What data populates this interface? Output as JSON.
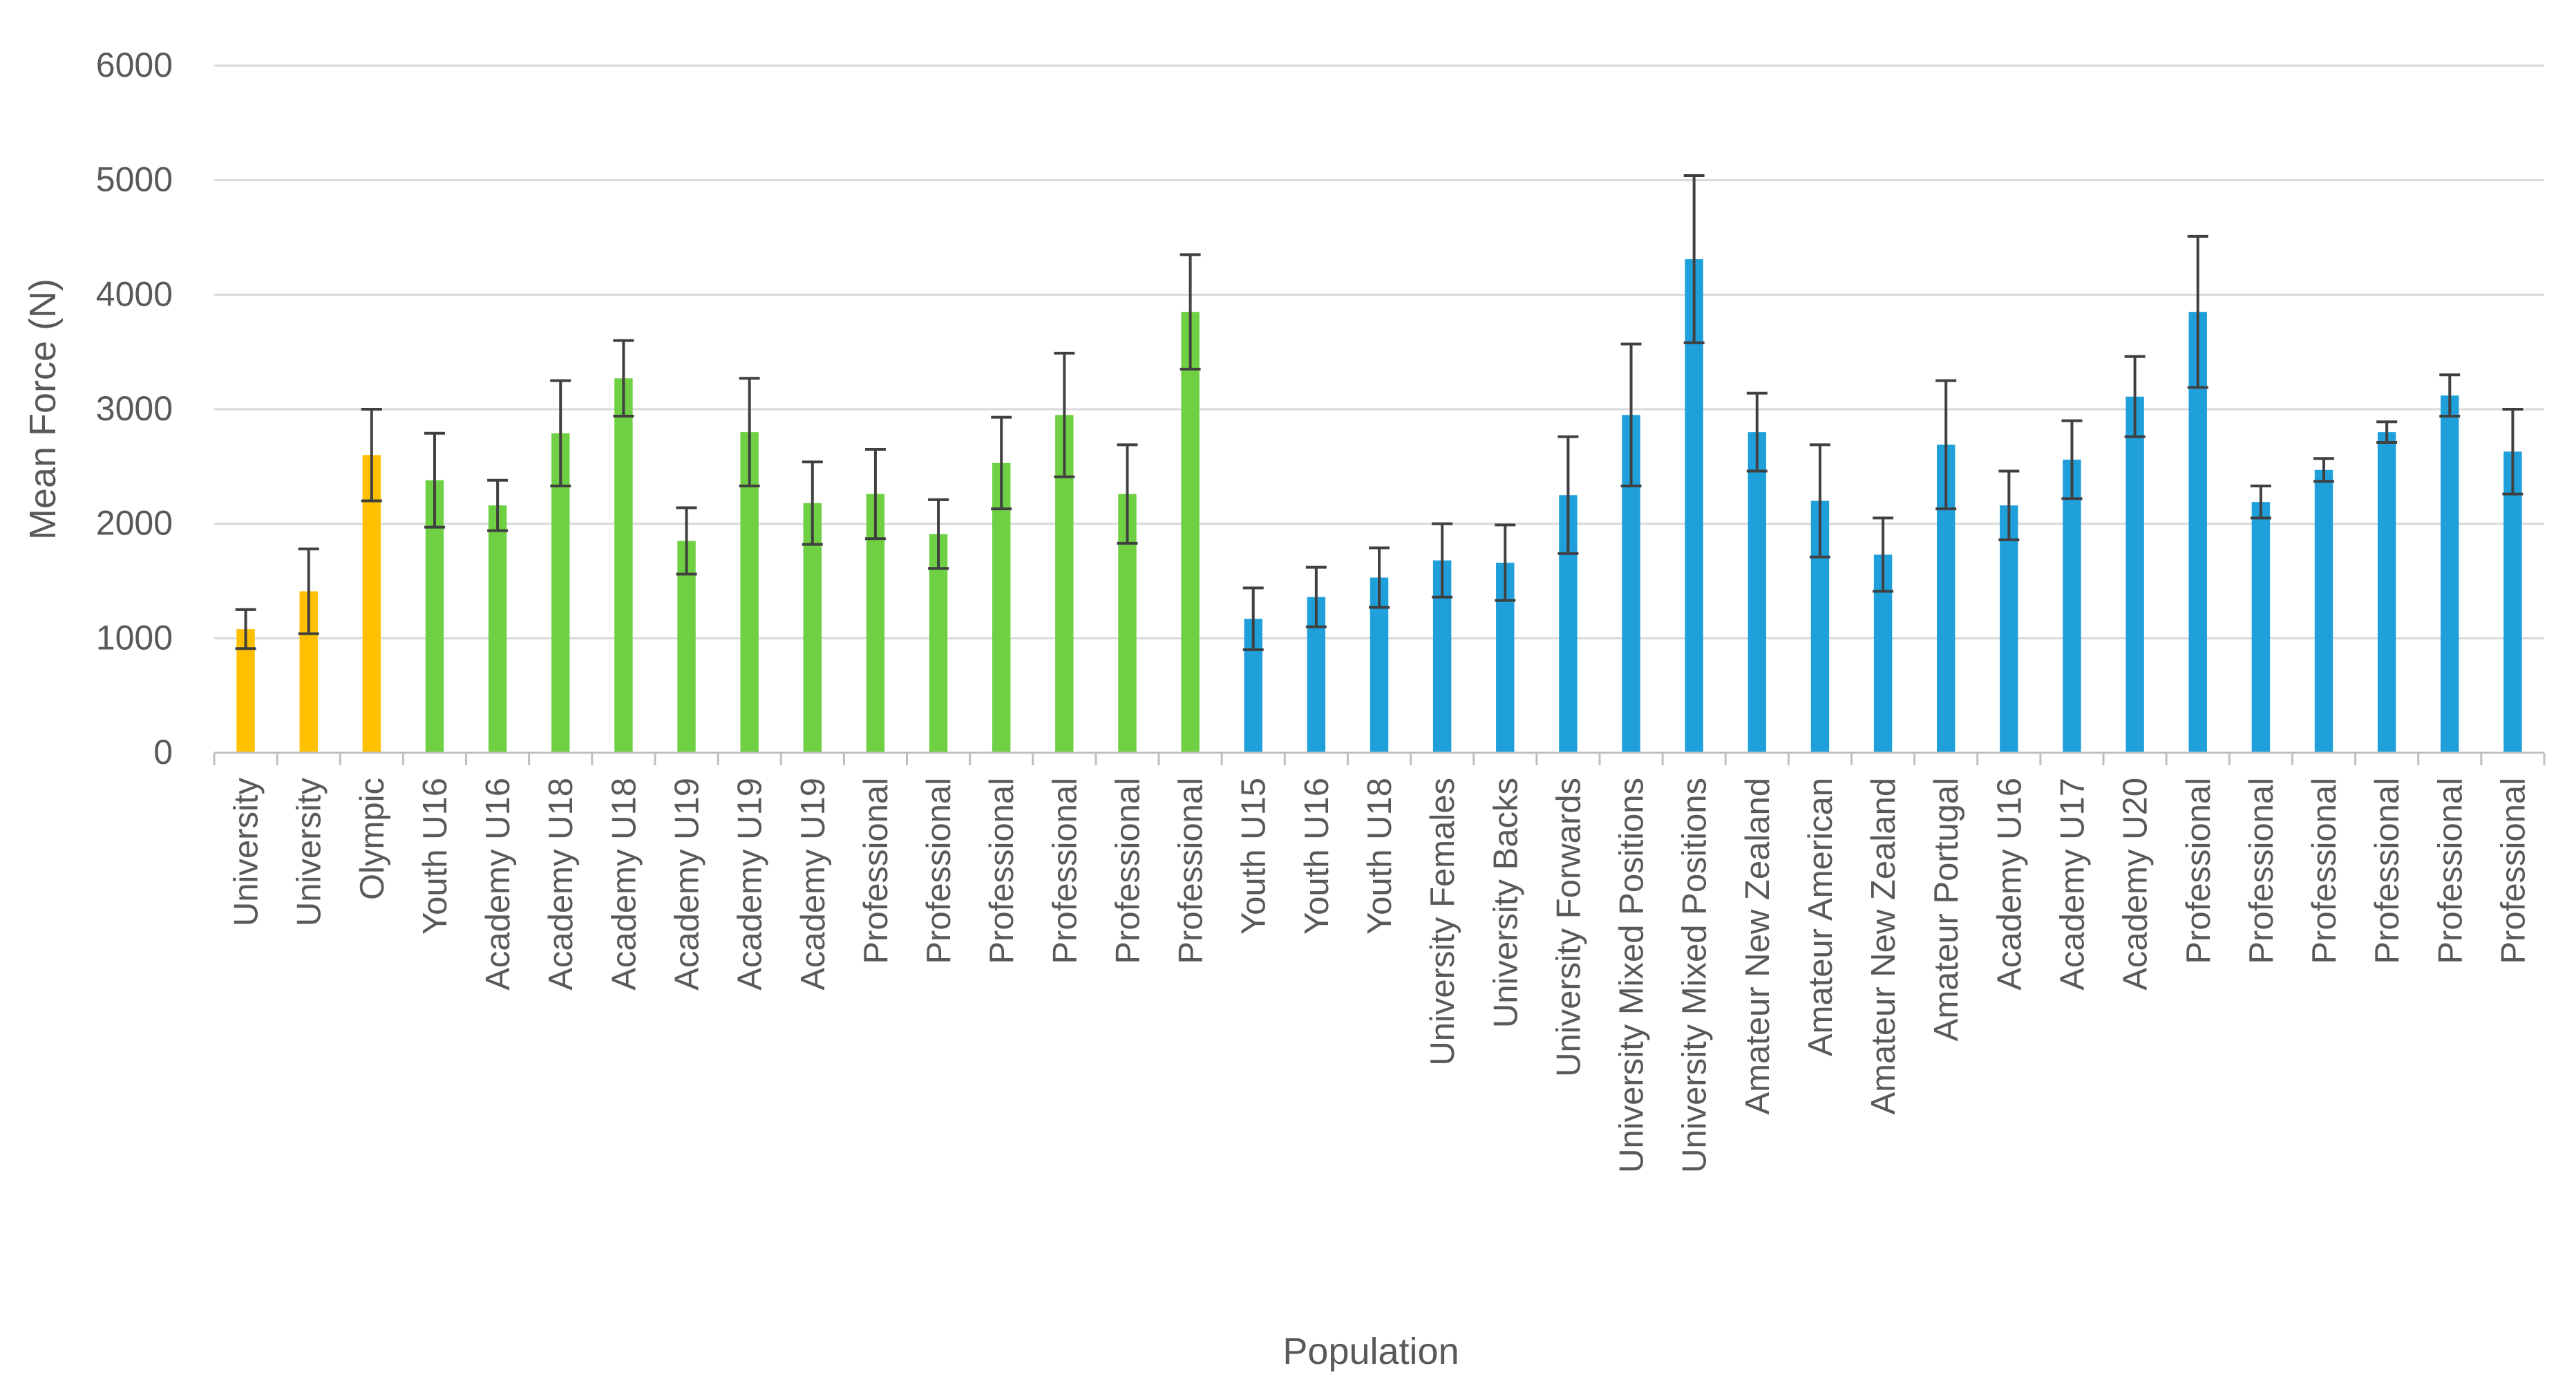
{
  "chart_data": {
    "type": "bar",
    "title": "",
    "xlabel": "Population",
    "ylabel": "Mean Force (N)",
    "ylim": [
      0,
      6000
    ],
    "yticks": [
      0,
      1000,
      2000,
      3000,
      4000,
      5000,
      6000
    ],
    "grid": "horizontal",
    "legend": "none",
    "colors": {
      "yellow": "#FFC000",
      "green": "#70D044",
      "blue": "#1FA0DB",
      "error_bar": "#404040",
      "grid": "#D9D9D9",
      "axis": "#BFBFBF",
      "text": "#595959"
    },
    "bars": [
      {
        "category": "University",
        "value": 1080,
        "error": 170,
        "color": "yellow"
      },
      {
        "category": "University",
        "value": 1410,
        "error": 370,
        "color": "yellow"
      },
      {
        "category": "Olympic",
        "value": 2600,
        "error": 400,
        "color": "yellow"
      },
      {
        "category": "Youth U16",
        "value": 2380,
        "error": 410,
        "color": "green"
      },
      {
        "category": "Academy U16",
        "value": 2160,
        "error": 220,
        "color": "green"
      },
      {
        "category": "Academy U18",
        "value": 2790,
        "error": 460,
        "color": "green"
      },
      {
        "category": "Academy U18",
        "value": 3270,
        "error": 330,
        "color": "green"
      },
      {
        "category": "Academy U19",
        "value": 1850,
        "error": 290,
        "color": "green"
      },
      {
        "category": "Academy U19",
        "value": 2800,
        "error": 470,
        "color": "green"
      },
      {
        "category": "Academy U19",
        "value": 2180,
        "error": 360,
        "color": "green"
      },
      {
        "category": "Professional",
        "value": 2260,
        "error": 390,
        "color": "green"
      },
      {
        "category": "Professional",
        "value": 1910,
        "error": 300,
        "color": "green"
      },
      {
        "category": "Professional",
        "value": 2530,
        "error": 400,
        "color": "green"
      },
      {
        "category": "Professional",
        "value": 2950,
        "error": 540,
        "color": "green"
      },
      {
        "category": "Professional",
        "value": 2260,
        "error": 430,
        "color": "green"
      },
      {
        "category": "Professional",
        "value": 3850,
        "error": 500,
        "color": "green"
      },
      {
        "category": "Youth U15",
        "value": 1170,
        "error": 270,
        "color": "blue"
      },
      {
        "category": "Youth U16",
        "value": 1360,
        "error": 260,
        "color": "blue"
      },
      {
        "category": "Youth U18",
        "value": 1530,
        "error": 260,
        "color": "blue"
      },
      {
        "category": "University Females",
        "value": 1680,
        "error": 320,
        "color": "blue"
      },
      {
        "category": "University Backs",
        "value": 1660,
        "error": 330,
        "color": "blue"
      },
      {
        "category": "University Forwards",
        "value": 2250,
        "error": 510,
        "color": "blue"
      },
      {
        "category": "University Mixed Positions",
        "value": 2950,
        "error": 620,
        "color": "blue"
      },
      {
        "category": "University Mixed Positions",
        "value": 4310,
        "error": 730,
        "color": "blue"
      },
      {
        "category": "Amateur New Zealand",
        "value": 2800,
        "error": 340,
        "color": "blue"
      },
      {
        "category": "Amateur American",
        "value": 2200,
        "error": 490,
        "color": "blue"
      },
      {
        "category": "Amateur New Zealand",
        "value": 1730,
        "error": 320,
        "color": "blue"
      },
      {
        "category": "Amateur Portugal",
        "value": 2690,
        "error": 560,
        "color": "blue"
      },
      {
        "category": "Academy U16",
        "value": 2160,
        "error": 300,
        "color": "blue"
      },
      {
        "category": "Academy U17",
        "value": 2560,
        "error": 340,
        "color": "blue"
      },
      {
        "category": "Academy U20",
        "value": 3110,
        "error": 350,
        "color": "blue"
      },
      {
        "category": "Professional",
        "value": 3850,
        "error": 660,
        "color": "blue"
      },
      {
        "category": "Professional",
        "value": 2190,
        "error": 140,
        "color": "blue"
      },
      {
        "category": "Professional",
        "value": 2470,
        "error": 100,
        "color": "blue"
      },
      {
        "category": "Professional",
        "value": 2800,
        "error": 90,
        "color": "blue"
      },
      {
        "category": "Professional",
        "value": 3120,
        "error": 180,
        "color": "blue"
      },
      {
        "category": "Professional",
        "value": 2630,
        "error": 370,
        "color": "blue"
      }
    ]
  }
}
